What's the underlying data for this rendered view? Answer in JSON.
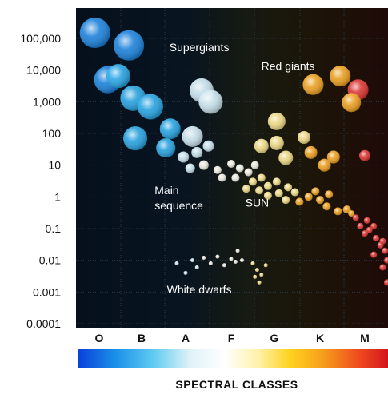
{
  "chart_data": {
    "type": "scatter",
    "title": "",
    "xlabel": "SPECTRAL CLASSES",
    "ylabel": "",
    "y_scale": "log",
    "ylim": [
      0.0001,
      100000
    ],
    "grid": true,
    "yticks": [
      "100,000",
      "10,000",
      "1,000",
      "100",
      "10",
      "1",
      "0.1",
      "0.01",
      "0.001",
      "0.0001"
    ],
    "categories": [
      "O",
      "B",
      "A",
      "F",
      "G",
      "K",
      "M"
    ],
    "annotations": [
      {
        "id": "supergiants",
        "text": "Supergiants",
        "cls": 2.8,
        "lum": 40000
      },
      {
        "id": "red-giants",
        "text": "Red giants",
        "cls": 4.8,
        "lum": 10000
      },
      {
        "id": "main-sequence",
        "text": [
          "Main",
          "sequence"
        ],
        "cls": 2.45,
        "lum": 0.6
      },
      {
        "id": "sun",
        "text": "SUN",
        "cls": 4.1,
        "lum": 0.5
      },
      {
        "id": "white-dwarfs",
        "text": "White dwarfs",
        "cls": 2.8,
        "lum": 0.0009
      }
    ],
    "class_colors": {
      "O": "#1e88e5",
      "B": "#29a9e8",
      "A": "#cfe8f2",
      "F": "#f3f2e8",
      "G": "#f6e08a",
      "K": "#f4a623",
      "M": "#e53935"
    },
    "series": [
      {
        "group": "supergiants",
        "points": [
          {
            "cls": 0.4,
            "lum": 150000,
            "size": 19,
            "class": "O"
          },
          {
            "cls": 1.2,
            "lum": 60000,
            "size": 19,
            "class": "O"
          },
          {
            "cls": 0.7,
            "lum": 5000,
            "size": 17,
            "class": "O"
          },
          {
            "cls": 0.95,
            "lum": 6500,
            "size": 15,
            "class": "B"
          },
          {
            "cls": 1.3,
            "lum": 1300,
            "size": 16,
            "class": "B"
          },
          {
            "cls": 1.7,
            "lum": 700,
            "size": 16,
            "class": "B"
          },
          {
            "cls": 1.35,
            "lum": 70,
            "size": 15,
            "class": "B"
          },
          {
            "cls": 2.15,
            "lum": 140,
            "size": 13,
            "class": "B"
          },
          {
            "cls": 2.05,
            "lum": 35,
            "size": 12,
            "class": "B"
          },
          {
            "cls": 2.65,
            "lum": 80,
            "size": 13,
            "class": "A"
          },
          {
            "cls": 2.85,
            "lum": 2300,
            "size": 15,
            "class": "A"
          },
          {
            "cls": 3.05,
            "lum": 1000,
            "size": 15,
            "class": "A"
          }
        ]
      },
      {
        "group": "red-giants",
        "points": [
          {
            "cls": 5.35,
            "lum": 3500,
            "size": 13,
            "class": "K"
          },
          {
            "cls": 5.95,
            "lum": 6500,
            "size": 13,
            "class": "K"
          },
          {
            "cls": 6.35,
            "lum": 2400,
            "size": 13,
            "class": "M"
          },
          {
            "cls": 6.2,
            "lum": 950,
            "size": 12,
            "class": "K"
          },
          {
            "cls": 4.55,
            "lum": 240,
            "size": 11,
            "class": "G"
          },
          {
            "cls": 4.2,
            "lum": 40,
            "size": 9,
            "class": "G"
          },
          {
            "cls": 4.55,
            "lum": 50,
            "size": 9,
            "class": "G"
          },
          {
            "cls": 5.15,
            "lum": 75,
            "size": 8,
            "class": "G"
          },
          {
            "cls": 4.75,
            "lum": 17,
            "size": 9,
            "class": "G"
          },
          {
            "cls": 5.3,
            "lum": 25,
            "size": 8,
            "class": "K"
          },
          {
            "cls": 5.8,
            "lum": 18,
            "size": 8,
            "class": "K"
          },
          {
            "cls": 5.6,
            "lum": 10,
            "size": 8,
            "class": "K"
          },
          {
            "cls": 6.5,
            "lum": 20,
            "size": 7,
            "class": "M"
          }
        ]
      },
      {
        "group": "main-sequence",
        "points": [
          {
            "cls": 2.45,
            "lum": 18,
            "size": 7,
            "class": "A"
          },
          {
            "cls": 2.75,
            "lum": 25,
            "size": 7,
            "class": "A"
          },
          {
            "cls": 3.0,
            "lum": 40,
            "size": 7,
            "class": "A"
          },
          {
            "cls": 2.6,
            "lum": 8,
            "size": 6,
            "class": "A"
          },
          {
            "cls": 2.9,
            "lum": 10,
            "size": 6,
            "class": "F"
          },
          {
            "cls": 3.2,
            "lum": 7,
            "size": 5,
            "class": "F"
          },
          {
            "cls": 3.5,
            "lum": 11,
            "size": 5,
            "class": "F"
          },
          {
            "cls": 3.7,
            "lum": 8,
            "size": 5,
            "class": "F"
          },
          {
            "cls": 3.3,
            "lum": 4,
            "size": 5,
            "class": "F"
          },
          {
            "cls": 3.6,
            "lum": 4,
            "size": 5,
            "class": "F"
          },
          {
            "cls": 3.9,
            "lum": 6,
            "size": 5,
            "class": "F"
          },
          {
            "cls": 4.05,
            "lum": 10,
            "size": 5,
            "class": "F"
          },
          {
            "cls": 4.0,
            "lum": 3,
            "size": 5,
            "class": "G"
          },
          {
            "cls": 4.2,
            "lum": 4,
            "size": 5,
            "class": "G"
          },
          {
            "cls": 3.85,
            "lum": 1.8,
            "size": 5,
            "class": "G"
          },
          {
            "cls": 4.15,
            "lum": 1.6,
            "size": 5,
            "class": "G"
          },
          {
            "cls": 4.35,
            "lum": 2.2,
            "size": 5,
            "class": "G"
          },
          {
            "cls": 4.55,
            "lum": 3,
            "size": 5,
            "class": "G"
          },
          {
            "cls": 4.35,
            "lum": 1.1,
            "size": 5,
            "class": "G"
          },
          {
            "cls": 4.6,
            "lum": 1.3,
            "size": 5,
            "class": "G"
          },
          {
            "cls": 4.8,
            "lum": 2,
            "size": 5,
            "class": "G"
          },
          {
            "cls": 4.95,
            "lum": 1.4,
            "size": 5,
            "class": "G"
          },
          {
            "cls": 4.75,
            "lum": 0.8,
            "size": 5,
            "class": "G"
          },
          {
            "cls": 5.05,
            "lum": 0.7,
            "size": 5,
            "class": "K"
          },
          {
            "cls": 5.25,
            "lum": 1.0,
            "size": 5,
            "class": "K"
          },
          {
            "cls": 5.4,
            "lum": 1.5,
            "size": 5,
            "class": "K"
          },
          {
            "cls": 5.5,
            "lum": 0.8,
            "size": 5,
            "class": "K"
          },
          {
            "cls": 5.7,
            "lum": 1.2,
            "size": 5,
            "class": "K"
          },
          {
            "cls": 5.65,
            "lum": 0.5,
            "size": 5,
            "class": "K"
          },
          {
            "cls": 5.9,
            "lum": 0.35,
            "size": 5,
            "class": "K"
          },
          {
            "cls": 6.1,
            "lum": 0.4,
            "size": 5,
            "class": "K"
          },
          {
            "cls": 6.3,
            "lum": 0.22,
            "size": 4,
            "class": "M"
          },
          {
            "cls": 6.55,
            "lum": 0.18,
            "size": 4,
            "class": "M"
          },
          {
            "cls": 6.7,
            "lum": 0.12,
            "size": 4,
            "class": "M"
          },
          {
            "cls": 6.5,
            "lum": 0.07,
            "size": 4,
            "class": "M"
          },
          {
            "cls": 6.75,
            "lum": 0.05,
            "size": 4,
            "class": "M"
          },
          {
            "cls": 6.85,
            "lum": 0.03,
            "size": 4,
            "class": "M"
          },
          {
            "cls": 6.95,
            "lum": 0.02,
            "size": 4,
            "class": "M"
          },
          {
            "cls": 6.7,
            "lum": 0.015,
            "size": 4,
            "class": "M"
          },
          {
            "cls": 7.0,
            "lum": 0.01,
            "size": 4,
            "class": "M"
          },
          {
            "cls": 6.9,
            "lum": 0.006,
            "size": 4,
            "class": "M"
          },
          {
            "cls": 7.1,
            "lum": 0.004,
            "size": 4,
            "class": "M"
          },
          {
            "cls": 7.0,
            "lum": 0.002,
            "size": 4,
            "class": "M"
          },
          {
            "cls": 7.2,
            "lum": 0.0015,
            "size": 4,
            "class": "M"
          },
          {
            "cls": 7.15,
            "lum": 0.0009,
            "size": 4,
            "class": "M"
          },
          {
            "cls": 7.3,
            "lum": 0.0007,
            "size": 4,
            "class": "M"
          },
          {
            "cls": 6.2,
            "lum": 0.3,
            "size": 4,
            "class": "K"
          },
          {
            "cls": 6.4,
            "lum": 0.12,
            "size": 4,
            "class": "M"
          },
          {
            "cls": 6.6,
            "lum": 0.09,
            "size": 4,
            "class": "M"
          },
          {
            "cls": 6.9,
            "lum": 0.04,
            "size": 4,
            "class": "M"
          }
        ]
      },
      {
        "group": "white-dwarfs",
        "points": [
          {
            "cls": 2.3,
            "lum": 0.008,
            "size": 2.5,
            "class": "A"
          },
          {
            "cls": 2.5,
            "lum": 0.004,
            "size": 2.5,
            "class": "A"
          },
          {
            "cls": 2.65,
            "lum": 0.01,
            "size": 2.5,
            "class": "A"
          },
          {
            "cls": 2.75,
            "lum": 0.006,
            "size": 2.5,
            "class": "A"
          },
          {
            "cls": 2.9,
            "lum": 0.012,
            "size": 2.5,
            "class": "F"
          },
          {
            "cls": 3.05,
            "lum": 0.008,
            "size": 2.5,
            "class": "F"
          },
          {
            "cls": 3.2,
            "lum": 0.013,
            "size": 2.5,
            "class": "F"
          },
          {
            "cls": 3.35,
            "lum": 0.007,
            "size": 2.5,
            "class": "F"
          },
          {
            "cls": 3.5,
            "lum": 0.011,
            "size": 2.5,
            "class": "F"
          },
          {
            "cls": 3.65,
            "lum": 0.02,
            "size": 2.5,
            "class": "F"
          },
          {
            "cls": 3.75,
            "lum": 0.01,
            "size": 2.5,
            "class": "F"
          },
          {
            "cls": 3.6,
            "lum": 0.009,
            "size": 2.5,
            "class": "F"
          },
          {
            "cls": 4.0,
            "lum": 0.008,
            "size": 2.5,
            "class": "G"
          },
          {
            "cls": 4.1,
            "lum": 0.005,
            "size": 2.5,
            "class": "G"
          },
          {
            "cls": 4.05,
            "lum": 0.003,
            "size": 2.5,
            "class": "G"
          },
          {
            "cls": 4.2,
            "lum": 0.0035,
            "size": 2.5,
            "class": "G"
          },
          {
            "cls": 4.15,
            "lum": 0.002,
            "size": 2.5,
            "class": "G"
          },
          {
            "cls": 4.3,
            "lum": 0.007,
            "size": 2.5,
            "class": "G"
          }
        ]
      }
    ]
  }
}
